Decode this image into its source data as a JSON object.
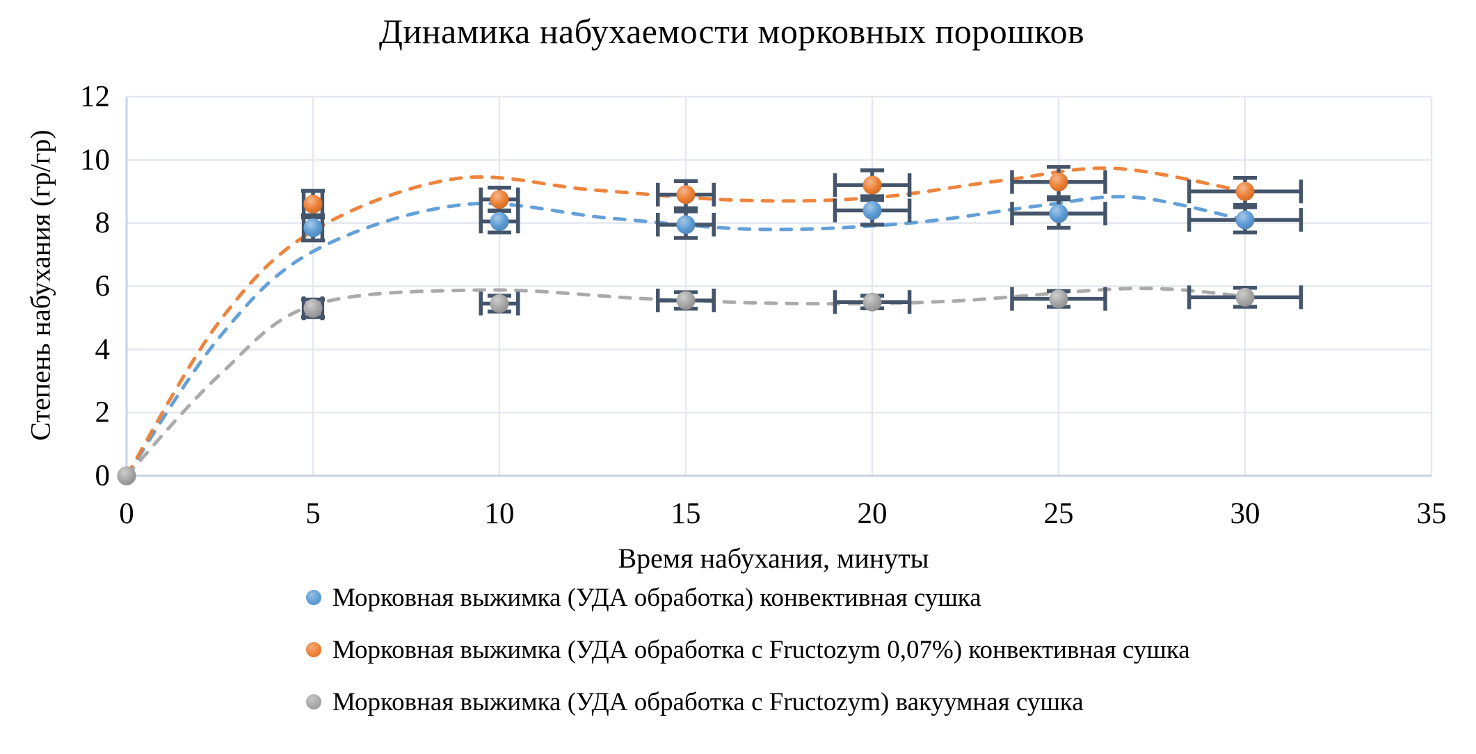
{
  "chart_data": {
    "type": "scatter",
    "title": "Динамика набухаемости морковных порошков",
    "xlabel": "Время набухания, минуты",
    "ylabel": "Степень набухания (гр/гр)",
    "xlim": [
      0,
      35
    ],
    "ylim": [
      0,
      12
    ],
    "x_ticks": [
      0,
      5,
      10,
      15,
      20,
      25,
      30,
      35
    ],
    "y_ticks": [
      0,
      2,
      4,
      6,
      8,
      10,
      12
    ],
    "grid": true,
    "legend_position": "bottom",
    "trendline_style": "dashed",
    "x": [
      0,
      5,
      10,
      15,
      20,
      25,
      30
    ],
    "x_error": [
      0,
      0.25,
      0.5,
      0.75,
      1.0,
      1.25,
      1.5
    ],
    "series": [
      {
        "name": "Морковная выжимка (УДА обработка) конвективная сушка",
        "color": "#5B9BD5",
        "values": [
          0,
          7.85,
          8.05,
          7.95,
          8.4,
          8.3,
          8.1
        ],
        "y_error": [
          0,
          0.4,
          0.35,
          0.42,
          0.45,
          0.45,
          0.4
        ],
        "trend": [
          [
            0,
            0
          ],
          [
            2.5,
            4.4
          ],
          [
            5,
            7.1
          ],
          [
            9,
            8.58
          ],
          [
            13,
            8.15
          ],
          [
            17,
            7.8
          ],
          [
            21,
            8.0
          ],
          [
            24.5,
            8.55
          ],
          [
            27,
            8.82
          ],
          [
            30,
            8.1
          ]
        ]
      },
      {
        "name": "Морковная выжимка (УДА обработка с Fructozym 0,07%) конвективная сушка",
        "color": "#ED7D31",
        "values": [
          0,
          8.6,
          8.75,
          8.9,
          9.2,
          9.3,
          9.0
        ],
        "y_error": [
          0,
          0.42,
          0.37,
          0.43,
          0.47,
          0.48,
          0.43
        ],
        "trend": [
          [
            0,
            0
          ],
          [
            2.5,
            4.9
          ],
          [
            5,
            7.75
          ],
          [
            8.8,
            9.4
          ],
          [
            12.5,
            9.05
          ],
          [
            16.5,
            8.72
          ],
          [
            20,
            8.8
          ],
          [
            23.5,
            9.35
          ],
          [
            26.5,
            9.73
          ],
          [
            30,
            9.0
          ]
        ]
      },
      {
        "name": "Морковная выжимка (УДА обработка с Fructozym) вакуумная сушка",
        "color": "#A5A5A5",
        "values": [
          0,
          5.3,
          5.45,
          5.55,
          5.5,
          5.6,
          5.65
        ],
        "y_error": [
          0,
          0.28,
          0.25,
          0.26,
          0.2,
          0.25,
          0.3
        ],
        "trend": [
          [
            0,
            0
          ],
          [
            2.5,
            3.2
          ],
          [
            5,
            5.4
          ],
          [
            9.5,
            5.88
          ],
          [
            14,
            5.6
          ],
          [
            18,
            5.45
          ],
          [
            22,
            5.52
          ],
          [
            27,
            5.93
          ],
          [
            30,
            5.68
          ]
        ]
      }
    ],
    "colors": {
      "error_bar": "#44546A",
      "gridline": "#E4E8F0",
      "axis_line": "#C9D2E2",
      "text": "#000000"
    }
  }
}
